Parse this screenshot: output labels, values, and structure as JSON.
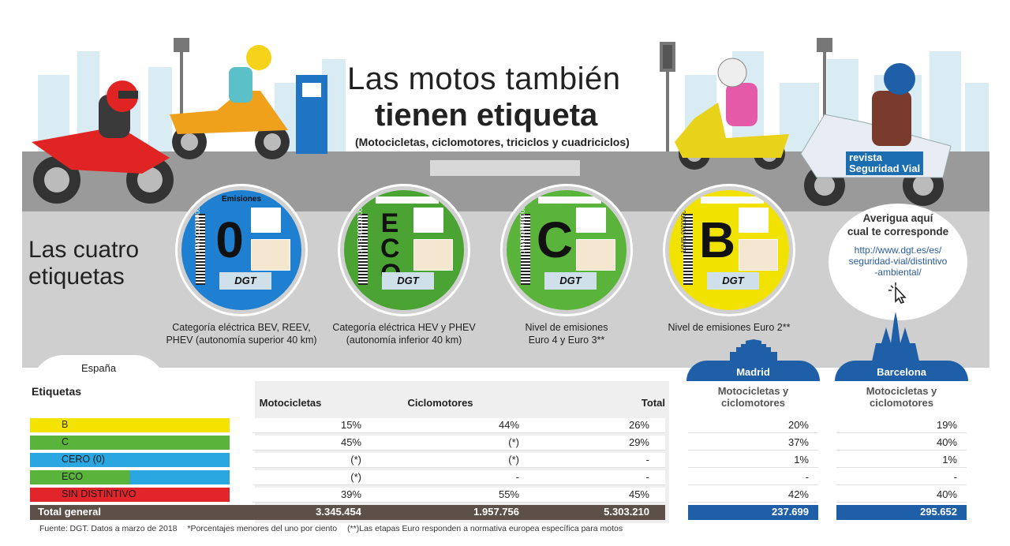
{
  "header": {
    "title_line1": "Las motos también",
    "title_line2": "tienen etiqueta",
    "subtitle": "(Motocicletas, ciclomotores, triciclos y cuadriciclos)",
    "magazine_line1": "revista",
    "magazine_line2": "Seguridad Vial"
  },
  "intro": {
    "line1": "Las cuatro",
    "line2": "etiquetas"
  },
  "badges": [
    {
      "letter": "0",
      "top_text": "Emisiones",
      "code": "16M0-00000000",
      "logo": "DGT",
      "color": "#1f7fd0",
      "caption1": "Categoría eléctrica BEV, REEV,",
      "caption2": "PHEV (autonomía superior 40 km)"
    },
    {
      "letter": "ECO",
      "top_text": "",
      "code": "16TE-00000000",
      "logo": "DGT",
      "color": "#4aa332",
      "caption1": "Categoría eléctrica HEV y PHEV",
      "caption2": "(autonomía inferior 40 km)"
    },
    {
      "letter": "C",
      "top_text": "",
      "code": "16MC-00000000",
      "logo": "DGT",
      "color": "#5ab33a",
      "caption1": "Nivel de emisiones",
      "caption2": "Euro 4 y Euro 3**"
    },
    {
      "letter": "B",
      "top_text": "",
      "code": "16MB-00000000",
      "logo": "DGT",
      "color": "#f2e200",
      "caption1": "Nivel de emisiones Euro 2**",
      "caption2": ""
    }
  ],
  "info_bubble": {
    "heading_line1": "Averigua aquí",
    "heading_line2": "cual te corresponde",
    "url_line1": "http://www.dgt.es/es/",
    "url_line2": "seguridad-vial/distintivo",
    "url_line3": "-ambiental/"
  },
  "table": {
    "region": "España",
    "label_header": "Etiquetas",
    "columns": [
      "Motocicletas",
      "Ciclomotores",
      "Total"
    ],
    "rows": [
      {
        "label": "B",
        "color": "#f4e300",
        "values": [
          "15%",
          "44%",
          "26%"
        ]
      },
      {
        "label": "C",
        "color": "#5ab33a",
        "values": [
          "45%",
          "(*)",
          "29%"
        ]
      },
      {
        "label": "CERO (0)",
        "color": "#2aa6e0",
        "values": [
          "(*)",
          "(*)",
          "-"
        ]
      },
      {
        "label": "ECO",
        "color": "#2aa6e0",
        "color2": "#5ab33a",
        "values": [
          "(*)",
          "-",
          "-"
        ]
      },
      {
        "label": "SIN DISTINTIVO",
        "color": "#e2252b",
        "values": [
          "39%",
          "55%",
          "45%"
        ]
      }
    ],
    "total": {
      "label": "Total general",
      "values": [
        "3.345.454",
        "1.957.756",
        "5.303.210"
      ]
    }
  },
  "cities": [
    {
      "name": "Madrid",
      "header1": "Motocicletas y",
      "header2": "ciclomotores",
      "values": [
        "20%",
        "37%",
        "1%",
        "-",
        "42%"
      ],
      "total": "237.699"
    },
    {
      "name": "Barcelona",
      "header1": "Motocicletas y",
      "header2": "ciclomotores",
      "values": [
        "19%",
        "40%",
        "1%",
        "-",
        "40%"
      ],
      "total": "295.652"
    }
  ],
  "footnote": {
    "source": "Fuente: DGT. Datos a marzo de 2018",
    "note1": "*Porcentajes menores del uno por ciento",
    "note2": "(**)Las etapas Euro responden a normativa europea específica para motos"
  }
}
